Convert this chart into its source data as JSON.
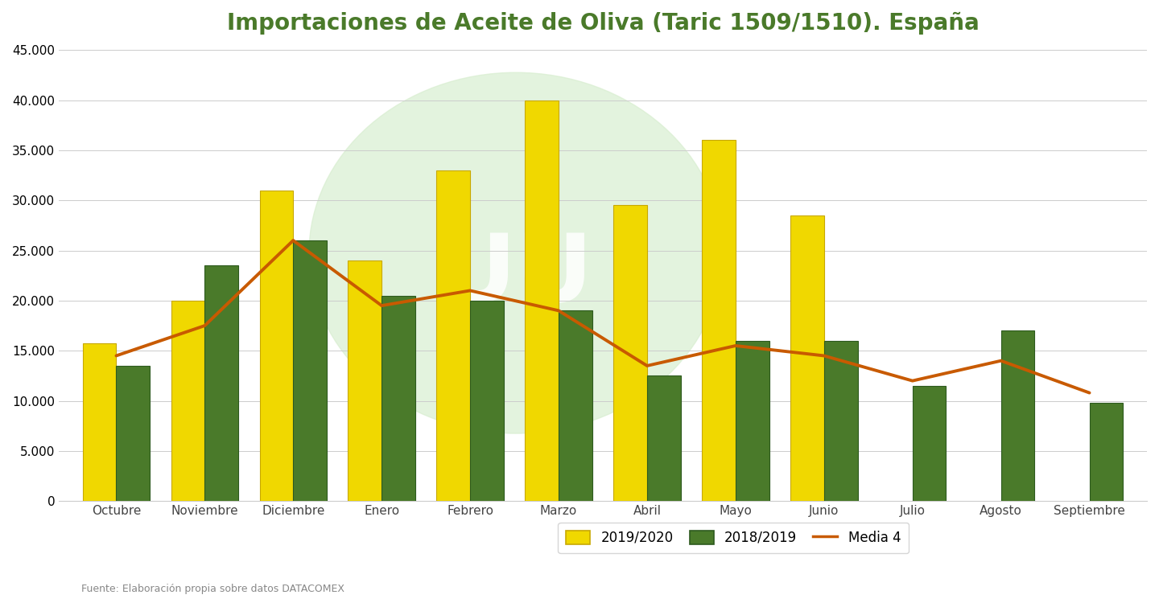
{
  "title": "Importaciones de Aceite de Oliva (Taric 1509/1510). España",
  "categories": [
    "Octubre",
    "Noviembre",
    "Diciembre",
    "Enero",
    "Febrero",
    "Marzo",
    "Abril",
    "Mayo",
    "Junio",
    "Julio",
    "Agosto",
    "Septiembre"
  ],
  "series_2019_2020": [
    15700,
    20000,
    31000,
    24000,
    33000,
    40000,
    29500,
    36000,
    28500,
    null,
    null,
    null
  ],
  "series_2018_2019": [
    13500,
    23500,
    26000,
    20500,
    20000,
    19000,
    12500,
    16000,
    16000,
    11500,
    17000,
    9800
  ],
  "media4": [
    14500,
    17500,
    26000,
    19500,
    21000,
    19000,
    13500,
    15500,
    14500,
    12000,
    14000,
    10800
  ],
  "bar_color_2019": "#f0d800",
  "bar_color_2019_edge": "#c8a800",
  "bar_color_2018": "#4a7a2a",
  "bar_color_2018_edge": "#2d5a1e",
  "line_color_media": "#c85a00",
  "bg_color": "#ffffff",
  "plot_bg": "#ffffff",
  "ylim": [
    0,
    45000
  ],
  "yticks": [
    0,
    5000,
    10000,
    15000,
    20000,
    25000,
    30000,
    35000,
    40000,
    45000
  ],
  "source_text": "Fuente: Elaboración propia sobre datos DATACOMEX",
  "legend_labels": [
    "2019/2020",
    "2018/2019",
    "Media 4"
  ],
  "title_color": "#4a7a2a",
  "title_fontsize": 20,
  "watermark_color": "#d8eed0",
  "watermark_alpha": 0.7
}
